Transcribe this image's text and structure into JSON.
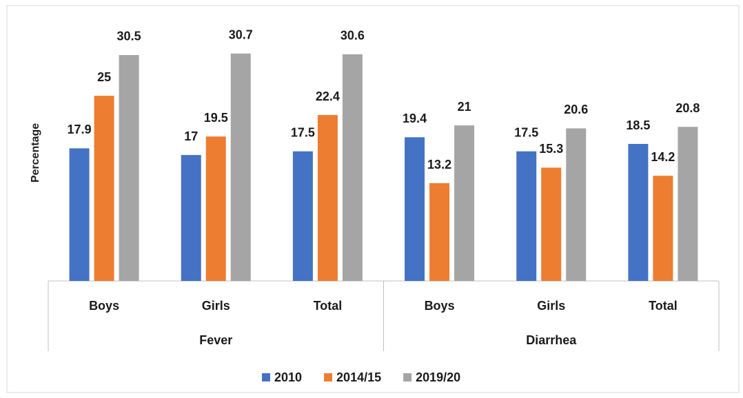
{
  "chart_data": {
    "type": "bar",
    "y_label": "Percentage",
    "groups": [
      {
        "name": "Fever",
        "categories": [
          "Boys",
          "Girls",
          "Total"
        ]
      },
      {
        "name": "Diarrhea",
        "categories": [
          "Boys",
          "Girls",
          "Total"
        ]
      }
    ],
    "series": [
      {
        "name": "2010",
        "color": "#4472c4",
        "values": [
          17.9,
          17,
          17.5,
          19.4,
          17.5,
          18.5
        ]
      },
      {
        "name": "2014/15",
        "color": "#ed7d31",
        "values": [
          25,
          19.5,
          22.4,
          13.2,
          15.3,
          14.2
        ]
      },
      {
        "name": "2019/20",
        "color": "#a5a5a5",
        "values": [
          30.5,
          30.7,
          30.6,
          21,
          20.6,
          20.8
        ]
      }
    ],
    "ylim": [
      0,
      37
    ],
    "legend": "bottom"
  }
}
